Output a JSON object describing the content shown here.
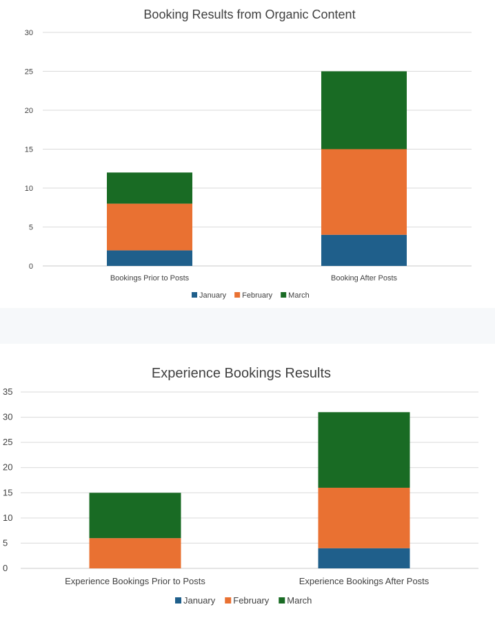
{
  "chart_data": [
    {
      "type": "bar",
      "stacked": true,
      "title": "Booking Results from Organic Content",
      "categories": [
        "Bookings Prior to Posts",
        "Booking After Posts"
      ],
      "series": [
        {
          "name": "January",
          "values": [
            2,
            4
          ],
          "color": "#1f5f8b"
        },
        {
          "name": "February",
          "values": [
            6,
            11
          ],
          "color": "#e97132"
        },
        {
          "name": "March",
          "values": [
            4,
            10
          ],
          "color": "#196b24"
        }
      ],
      "ylim": [
        0,
        30
      ],
      "yticks": [
        0,
        5,
        10,
        15,
        20,
        25,
        30
      ],
      "grid": true,
      "legend": "bottom",
      "xlabel": "",
      "ylabel": ""
    },
    {
      "type": "bar",
      "stacked": true,
      "title": "Experience Bookings Results",
      "categories": [
        "Experience Bookings Prior to Posts",
        "Experience Bookings After Posts"
      ],
      "series": [
        {
          "name": "January",
          "values": [
            0,
            4
          ],
          "color": "#1f5f8b"
        },
        {
          "name": "February",
          "values": [
            6,
            12
          ],
          "color": "#e97132"
        },
        {
          "name": "March",
          "values": [
            9,
            15
          ],
          "color": "#196b24"
        }
      ],
      "ylim": [
        0,
        35
      ],
      "yticks": [
        0,
        5,
        10,
        15,
        20,
        25,
        30,
        35
      ],
      "grid": true,
      "legend": "bottom",
      "xlabel": "",
      "ylabel": ""
    }
  ]
}
